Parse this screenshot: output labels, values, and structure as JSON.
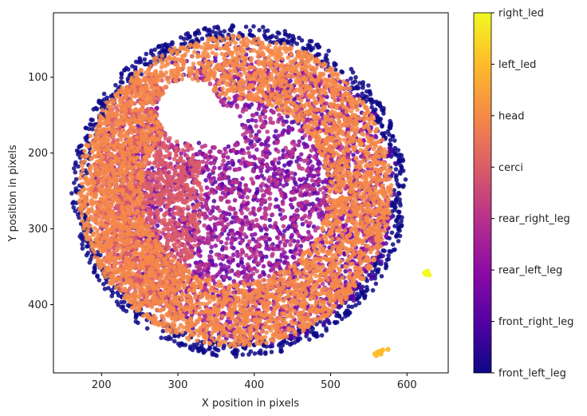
{
  "chart_data": {
    "type": "scatter",
    "title": "",
    "xlabel": "X position in pixels",
    "ylabel": "Y position in pixels",
    "xlim": [
      137,
      654
    ],
    "ylim": [
      490,
      15
    ],
    "y_inverted": true,
    "x_ticks": [
      "200",
      "300",
      "400",
      "500",
      "600"
    ],
    "y_ticks": [
      "100",
      "200",
      "300",
      "400"
    ],
    "grid": false,
    "colormap": "plasma",
    "colorbar_labels": [
      "front_left_leg",
      "front_right_leg",
      "rear_left_leg",
      "rear_right_leg",
      "cerci",
      "head",
      "left_led",
      "right_led"
    ],
    "series": [
      {
        "name": "front_left_leg",
        "color": "#0d0887",
        "region": {
          "cx": 380,
          "cy": 250,
          "r": 215,
          "mode": "edge"
        }
      },
      {
        "name": "front_right_leg",
        "color": "#5302a3",
        "region": {
          "cx": 390,
          "cy": 255,
          "r": 200,
          "mode": "scatter"
        }
      },
      {
        "name": "rear_left_leg",
        "color": "#8b0aa5",
        "region": {
          "cx": 400,
          "cy": 260,
          "r": 180,
          "mode": "scatter"
        }
      },
      {
        "name": "rear_right_leg",
        "color": "#b83289",
        "region": {
          "cx": 390,
          "cy": 260,
          "r": 185,
          "mode": "scatter"
        }
      },
      {
        "name": "cerci",
        "color": "#db5c68",
        "region": {
          "cx": 260,
          "cy": 250,
          "r": 95,
          "mode": "fill"
        }
      },
      {
        "name": "head",
        "color": "#f48849",
        "region": {
          "cx": 375,
          "cy": 250,
          "r": 205,
          "mode": "ring"
        }
      },
      {
        "name": "left_led",
        "color": "#febc2a",
        "points": [
          [
            558,
            465
          ],
          [
            561,
            463
          ],
          [
            563,
            462
          ],
          [
            565,
            462
          ],
          [
            567,
            461
          ],
          [
            566,
            465
          ],
          [
            560,
            467
          ],
          [
            568,
            460
          ],
          [
            562,
            464
          ],
          [
            575,
            459
          ]
        ]
      },
      {
        "name": "right_led",
        "color": "#f0f921",
        "points": [
          [
            623,
            358
          ],
          [
            626,
            357
          ],
          [
            628,
            359
          ],
          [
            625,
            360
          ],
          [
            629,
            361
          ],
          [
            627,
            356
          ],
          [
            624,
            359
          ]
        ]
      }
    ]
  }
}
